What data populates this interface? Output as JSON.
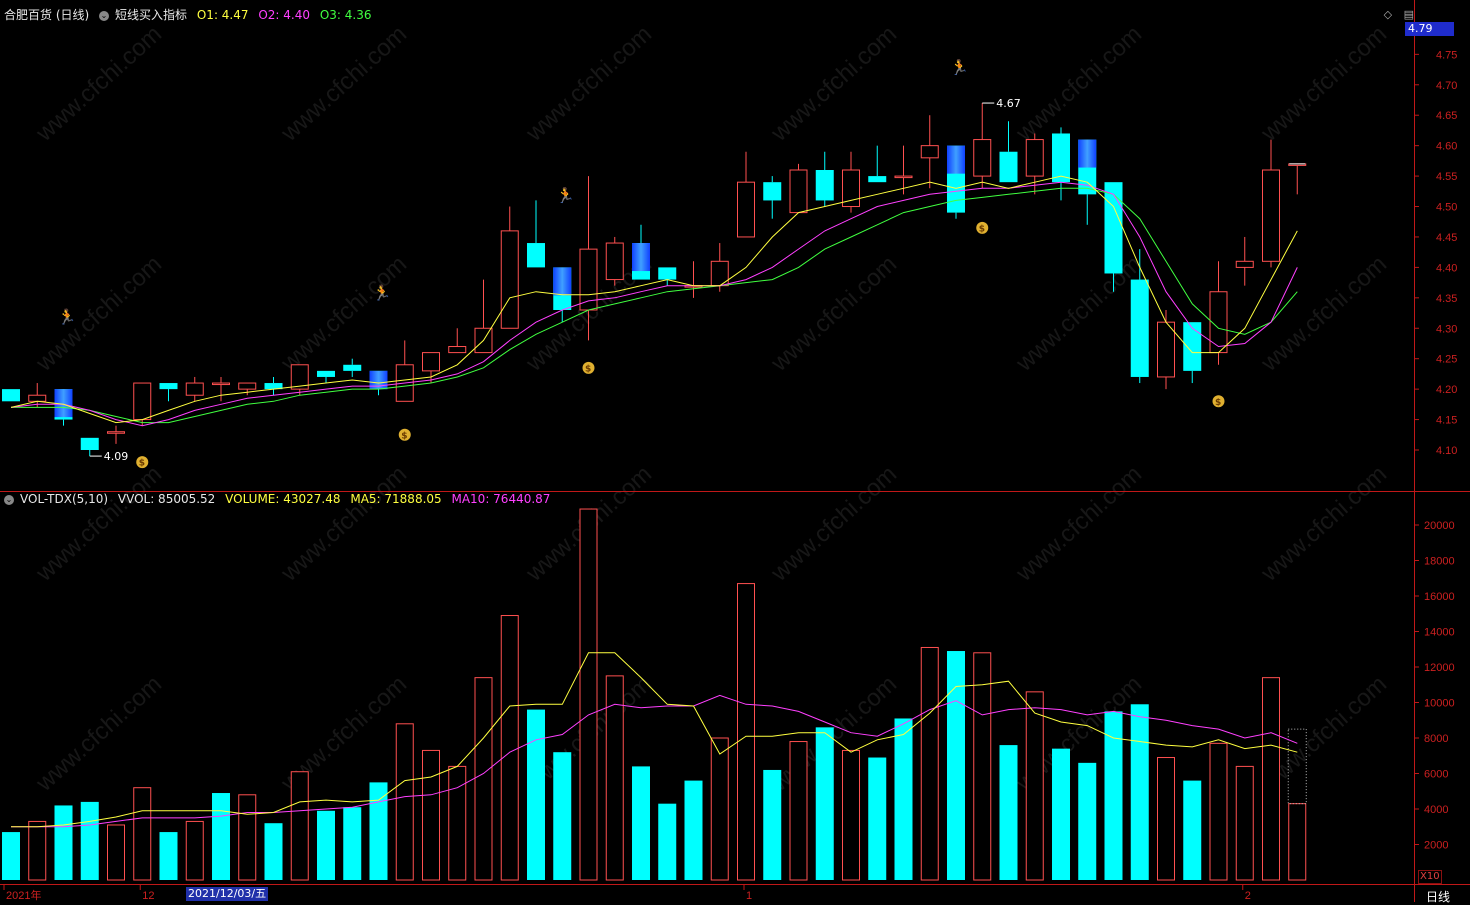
{
  "header": {
    "stock_name": "合肥百货 (日线)",
    "indicator_name": "短线买入指标",
    "o1": "O1: 4.47",
    "o2": "O2: 4.40",
    "o3": "O3: 4.36"
  },
  "volume_header": {
    "indicator": "VOL-TDX(5,10)",
    "vvol": "VVOL: 85005.52",
    "volume": "VOLUME: 43027.48",
    "ma5": "MA5: 71888.05",
    "ma10": "MA10: 76440.87"
  },
  "last_price_tag": "4.79",
  "date_tag": "2021/12/03/五",
  "period_label": "日线",
  "x10_label": "X10",
  "watermark_text": "www.cfchi.com",
  "colors": {
    "up": "#ff5050",
    "down": "#00ffff",
    "signal_down": "#1e64ff",
    "ma_short": "#ffff40",
    "ma_mid": "#ff40ff",
    "ma_long": "#40ff40",
    "axis": "#c01818",
    "axis_text": "#cc2020"
  },
  "icons": [
    "diamond-icon",
    "menu-icon",
    "runner-icon",
    "money-bag-icon",
    "arrow-icon",
    "collapse-icon"
  ],
  "chart_data": [
    {
      "type": "candlestick",
      "y_ticks": [
        "4.75",
        "4.70",
        "4.65",
        "4.60",
        "4.55",
        "4.50",
        "4.45",
        "4.40",
        "4.35",
        "4.30",
        "4.25",
        "4.20",
        "4.15",
        "4.10"
      ],
      "ylim": [
        4.055,
        4.8
      ],
      "x_labels": [
        {
          "index": 0,
          "text": "2021年"
        },
        {
          "index": 5,
          "text": "12"
        },
        {
          "index": 28,
          "text": "1"
        },
        {
          "index": 47,
          "text": "2"
        }
      ],
      "candles": [
        {
          "o": 4.2,
          "h": 4.2,
          "l": 4.18,
          "c": 4.18
        },
        {
          "o": 4.18,
          "h": 4.21,
          "l": 4.17,
          "c": 4.19
        },
        {
          "o": 4.2,
          "h": 4.2,
          "l": 4.14,
          "c": 4.15
        },
        {
          "o": 4.12,
          "h": 4.12,
          "l": 4.09,
          "c": 4.1
        },
        {
          "o": 4.13,
          "h": 4.14,
          "l": 4.11,
          "c": 4.13
        },
        {
          "o": 4.15,
          "h": 4.21,
          "l": 4.14,
          "c": 4.21
        },
        {
          "o": 4.21,
          "h": 4.21,
          "l": 4.18,
          "c": 4.2
        },
        {
          "o": 4.19,
          "h": 4.22,
          "l": 4.18,
          "c": 4.21
        },
        {
          "o": 4.21,
          "h": 4.22,
          "l": 4.18,
          "c": 4.21
        },
        {
          "o": 4.2,
          "h": 4.21,
          "l": 4.19,
          "c": 4.21
        },
        {
          "o": 4.21,
          "h": 4.22,
          "l": 4.19,
          "c": 4.2
        },
        {
          "o": 4.2,
          "h": 4.24,
          "l": 4.19,
          "c": 4.24
        },
        {
          "o": 4.23,
          "h": 4.23,
          "l": 4.21,
          "c": 4.22
        },
        {
          "o": 4.24,
          "h": 4.25,
          "l": 4.22,
          "c": 4.23
        },
        {
          "o": 4.23,
          "h": 4.23,
          "l": 4.19,
          "c": 4.2
        },
        {
          "o": 4.18,
          "h": 4.28,
          "l": 4.18,
          "c": 4.24
        },
        {
          "o": 4.23,
          "h": 4.26,
          "l": 4.21,
          "c": 4.26
        },
        {
          "o": 4.26,
          "h": 4.3,
          "l": 4.26,
          "c": 4.27
        },
        {
          "o": 4.26,
          "h": 4.38,
          "l": 4.26,
          "c": 4.3
        },
        {
          "o": 4.3,
          "h": 4.5,
          "l": 4.3,
          "c": 4.46
        },
        {
          "o": 4.44,
          "h": 4.51,
          "l": 4.4,
          "c": 4.4
        },
        {
          "o": 4.4,
          "h": 4.4,
          "l": 4.31,
          "c": 4.33
        },
        {
          "o": 4.33,
          "h": 4.55,
          "l": 4.28,
          "c": 4.43
        },
        {
          "o": 4.38,
          "h": 4.45,
          "l": 4.37,
          "c": 4.44
        },
        {
          "o": 4.44,
          "h": 4.47,
          "l": 4.38,
          "c": 4.38
        },
        {
          "o": 4.4,
          "h": 4.4,
          "l": 4.37,
          "c": 4.38
        },
        {
          "o": 4.37,
          "h": 4.41,
          "l": 4.35,
          "c": 4.37
        },
        {
          "o": 4.37,
          "h": 4.44,
          "l": 4.36,
          "c": 4.41
        },
        {
          "o": 4.45,
          "h": 4.59,
          "l": 4.45,
          "c": 4.54
        },
        {
          "o": 4.54,
          "h": 4.55,
          "l": 4.48,
          "c": 4.51
        },
        {
          "o": 4.49,
          "h": 4.57,
          "l": 4.49,
          "c": 4.56
        },
        {
          "o": 4.56,
          "h": 4.59,
          "l": 4.5,
          "c": 4.51
        },
        {
          "o": 4.5,
          "h": 4.59,
          "l": 4.49,
          "c": 4.56
        },
        {
          "o": 4.55,
          "h": 4.6,
          "l": 4.54,
          "c": 4.54
        },
        {
          "o": 4.55,
          "h": 4.6,
          "l": 4.52,
          "c": 4.55
        },
        {
          "o": 4.58,
          "h": 4.65,
          "l": 4.53,
          "c": 4.6
        },
        {
          "o": 4.6,
          "h": 4.6,
          "l": 4.48,
          "c": 4.49
        },
        {
          "o": 4.55,
          "h": 4.67,
          "l": 4.53,
          "c": 4.61
        },
        {
          "o": 4.59,
          "h": 4.64,
          "l": 4.54,
          "c": 4.54
        },
        {
          "o": 4.55,
          "h": 4.62,
          "l": 4.52,
          "c": 4.61
        },
        {
          "o": 4.62,
          "h": 4.63,
          "l": 4.51,
          "c": 4.54
        },
        {
          "o": 4.61,
          "h": 4.61,
          "l": 4.47,
          "c": 4.52
        },
        {
          "o": 4.54,
          "h": 4.54,
          "l": 4.36,
          "c": 4.39
        },
        {
          "o": 4.38,
          "h": 4.43,
          "l": 4.21,
          "c": 4.22
        },
        {
          "o": 4.22,
          "h": 4.33,
          "l": 4.2,
          "c": 4.31
        },
        {
          "o": 4.31,
          "h": 4.31,
          "l": 4.21,
          "c": 4.23
        },
        {
          "o": 4.26,
          "h": 4.41,
          "l": 4.24,
          "c": 4.36
        },
        {
          "o": 4.4,
          "h": 4.45,
          "l": 4.37,
          "c": 4.41
        },
        {
          "o": 4.41,
          "h": 4.61,
          "l": 4.4,
          "c": 4.56
        },
        {
          "o": 4.57,
          "h": 4.57,
          "l": 4.52,
          "c": 4.57
        }
      ],
      "signal_bars": [
        2,
        14,
        21,
        24,
        36,
        41
      ],
      "ma_short": [
        4.17,
        4.18,
        4.175,
        4.16,
        4.145,
        4.15,
        4.165,
        4.18,
        4.19,
        4.195,
        4.2,
        4.205,
        4.21,
        4.215,
        4.21,
        4.215,
        4.22,
        4.24,
        4.28,
        4.35,
        4.36,
        4.355,
        4.355,
        4.36,
        4.37,
        4.38,
        4.37,
        4.37,
        4.4,
        4.45,
        4.49,
        4.5,
        4.51,
        4.52,
        4.53,
        4.54,
        4.53,
        4.54,
        4.53,
        4.54,
        4.55,
        4.54,
        4.5,
        4.4,
        4.31,
        4.26,
        4.26,
        4.3,
        4.38,
        4.46
      ],
      "ma_mid": [
        4.17,
        4.175,
        4.175,
        4.165,
        4.15,
        4.14,
        4.15,
        4.165,
        4.175,
        4.185,
        4.19,
        4.195,
        4.2,
        4.205,
        4.205,
        4.21,
        4.215,
        4.225,
        4.245,
        4.28,
        4.31,
        4.33,
        4.345,
        4.35,
        4.36,
        4.37,
        4.37,
        4.37,
        4.38,
        4.4,
        4.43,
        4.46,
        4.48,
        4.5,
        4.51,
        4.52,
        4.525,
        4.53,
        4.53,
        4.535,
        4.54,
        4.535,
        4.52,
        4.45,
        4.36,
        4.3,
        4.27,
        4.275,
        4.31,
        4.4
      ],
      "ma_long": [
        4.17,
        4.17,
        4.17,
        4.165,
        4.155,
        4.145,
        4.145,
        4.155,
        4.165,
        4.175,
        4.18,
        4.19,
        4.195,
        4.2,
        4.2,
        4.205,
        4.21,
        4.22,
        4.235,
        4.265,
        4.29,
        4.31,
        4.33,
        4.34,
        4.35,
        4.36,
        4.365,
        4.37,
        4.375,
        4.38,
        4.4,
        4.43,
        4.45,
        4.47,
        4.49,
        4.5,
        4.51,
        4.515,
        4.52,
        4.525,
        4.53,
        4.53,
        4.52,
        4.48,
        4.41,
        4.34,
        4.3,
        4.29,
        4.31,
        4.36
      ],
      "annotations": [
        {
          "type": "low",
          "index": 3,
          "value": 4.09,
          "text": "4.09"
        },
        {
          "type": "high",
          "index": 37,
          "value": 4.67,
          "text": "4.67"
        }
      ],
      "runner_markers": [
        {
          "index": 2,
          "value": 4.31
        },
        {
          "index": 14,
          "value": 4.35
        },
        {
          "index": 21,
          "value": 4.51
        },
        {
          "index": 36,
          "value": 4.72
        }
      ],
      "money_markers": [
        {
          "index": 5,
          "value": 4.08
        },
        {
          "index": 15,
          "value": 4.125
        },
        {
          "index": 22,
          "value": 4.235
        },
        {
          "index": 37,
          "value": 4.465
        },
        {
          "index": 46,
          "value": 4.18
        }
      ]
    },
    {
      "type": "bar",
      "y_ticks": [
        "20000",
        "18000",
        "16000",
        "14000",
        "12000",
        "10000",
        "8000",
        "6000",
        "4000",
        "2000"
      ],
      "ylim": [
        0,
        21800
      ],
      "values": [
        2700,
        3300,
        4200,
        4400,
        3100,
        5200,
        2700,
        3300,
        4900,
        4800,
        3200,
        6100,
        3900,
        4100,
        5500,
        8800,
        7300,
        6400,
        11400,
        14900,
        9600,
        7200,
        20900,
        11500,
        6400,
        4300,
        5600,
        8000,
        16700,
        6200,
        7800,
        8600,
        7300,
        6900,
        9100,
        13100,
        12900,
        12800,
        7600,
        10600,
        7400,
        6600,
        9500,
        9900,
        6900,
        5600,
        7700,
        6400,
        11400,
        4300
      ],
      "bar_up": [
        0,
        1,
        0,
        0,
        1,
        1,
        0,
        1,
        0,
        1,
        0,
        1,
        0,
        0,
        0,
        1,
        1,
        1,
        1,
        1,
        0,
        0,
        1,
        1,
        0,
        0,
        0,
        1,
        1,
        0,
        1,
        0,
        1,
        0,
        0,
        1,
        0,
        1,
        0,
        1,
        0,
        0,
        0,
        0,
        1,
        0,
        1,
        1,
        1,
        1
      ],
      "ma5": [
        3000,
        3000,
        3100,
        3300,
        3550,
        3900,
        3900,
        3900,
        3900,
        3700,
        3800,
        4400,
        4500,
        4400,
        4500,
        5600,
        5800,
        6400,
        8000,
        9800,
        9900,
        9900,
        12800,
        12800,
        11400,
        9900,
        9800,
        7100,
        8100,
        8100,
        8300,
        8300,
        7200,
        7900,
        8200,
        9400,
        10900,
        11000,
        11200,
        9400,
        8900,
        8700,
        8000,
        7800,
        7600,
        7500,
        7900,
        7400,
        7600,
        7200
      ],
      "ma10": [
        3000,
        3000,
        3000,
        3100,
        3300,
        3500,
        3500,
        3500,
        3600,
        3800,
        3800,
        3900,
        4000,
        4100,
        4400,
        4700,
        4800,
        5200,
        6000,
        7200,
        7900,
        8200,
        9300,
        9900,
        9700,
        9800,
        9800,
        10400,
        9900,
        9800,
        9500,
        8900,
        8300,
        8100,
        8800,
        9600,
        10100,
        9300,
        9600,
        9700,
        9600,
        9300,
        9500,
        9200,
        9000,
        8700,
        8500,
        8000,
        8300,
        7700
      ]
    }
  ]
}
